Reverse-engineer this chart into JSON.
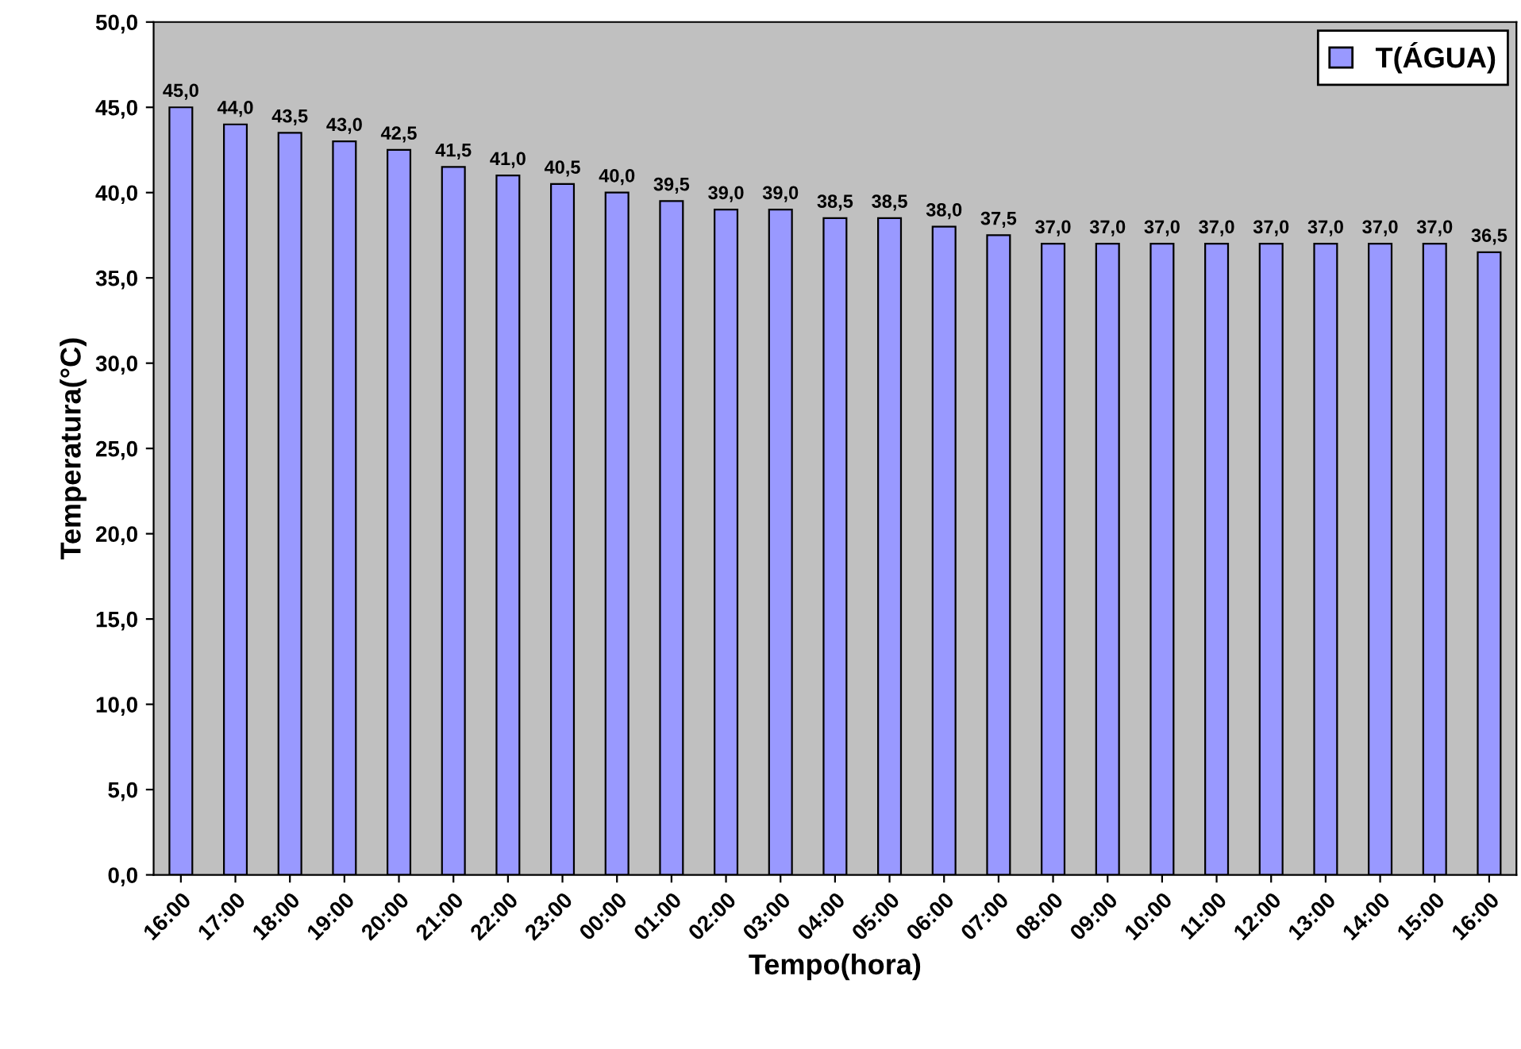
{
  "chart_data": {
    "type": "bar",
    "xlabel": "Tempo(hora)",
    "ylabel": "Temperatura(°C)",
    "categories": [
      "16:00",
      "17:00",
      "18:00",
      "19:00",
      "20:00",
      "21:00",
      "22:00",
      "23:00",
      "00:00",
      "01:00",
      "02:00",
      "03:00",
      "04:00",
      "05:00",
      "06:00",
      "07:00",
      "08:00",
      "09:00",
      "10:00",
      "11:00",
      "12:00",
      "13:00",
      "14:00",
      "15:00",
      "16:00"
    ],
    "series": [
      {
        "name": "T(ÁGUA)",
        "color": "#9999ff",
        "values": [
          45.0,
          44.0,
          43.5,
          43.0,
          42.5,
          41.5,
          41.0,
          40.5,
          40.0,
          39.5,
          39.0,
          39.0,
          38.5,
          38.5,
          38.0,
          37.5,
          37.0,
          37.0,
          37.0,
          37.0,
          37.0,
          37.0,
          37.0,
          37.0,
          36.5
        ],
        "value_labels": [
          "45,0",
          "44,0",
          "43,5",
          "43,0",
          "42,5",
          "41,5",
          "41,0",
          "40,5",
          "40,0",
          "39,5",
          "39,0",
          "39,0",
          "38,5",
          "38,5",
          "38,0",
          "37,5",
          "37,0",
          "37,0",
          "37,0",
          "37,0",
          "37,0",
          "37,0",
          "37,0",
          "37,0",
          "36,5"
        ]
      }
    ],
    "ylim": [
      0,
      50
    ],
    "yticks": [
      {
        "value": 0,
        "label": "0,0"
      },
      {
        "value": 5,
        "label": "5,0"
      },
      {
        "value": 10,
        "label": "10,0"
      },
      {
        "value": 15,
        "label": "15,0"
      },
      {
        "value": 20,
        "label": "20,0"
      },
      {
        "value": 25,
        "label": "25,0"
      },
      {
        "value": 30,
        "label": "30,0"
      },
      {
        "value": 35,
        "label": "35,0"
      },
      {
        "value": 40,
        "label": "40,0"
      },
      {
        "value": 45,
        "label": "45,0"
      },
      {
        "value": 50,
        "label": "50,0"
      }
    ],
    "grid": false,
    "legend": "top right"
  }
}
